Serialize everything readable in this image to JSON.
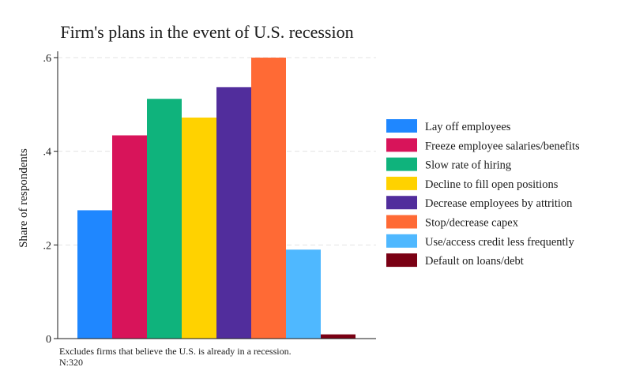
{
  "chart_data": {
    "type": "bar",
    "title": "Firm's plans in the event of U.S. recession",
    "xlabel": "",
    "ylabel": "Share of respondents",
    "ylim": [
      0,
      0.6
    ],
    "yticks": [
      0,
      0.2,
      0.4,
      0.6
    ],
    "ytick_labels": [
      "0",
      ".2",
      ".4",
      ".6"
    ],
    "grid": true,
    "legend_position": "right",
    "series": [
      {
        "name": "Lay off employees",
        "value": 0.274,
        "color": "#1f87ff"
      },
      {
        "name": "Freeze employee salaries/benefits",
        "value": 0.434,
        "color": "#d8145a"
      },
      {
        "name": "Slow rate of hiring",
        "value": 0.512,
        "color": "#0fb37c"
      },
      {
        "name": "Decline to fill open positions",
        "value": 0.472,
        "color": "#ffd200"
      },
      {
        "name": "Decrease employees by attrition",
        "value": 0.537,
        "color": "#512d9c"
      },
      {
        "name": "Stop/decrease capex",
        "value": 0.6,
        "color": "#ff6a35"
      },
      {
        "name": "Use/access credit less frequently",
        "value": 0.19,
        "color": "#4fb8ff"
      },
      {
        "name": "Default on loans/debt",
        "value": 0.009,
        "color": "#7a0014"
      }
    ],
    "notes": [
      "Excludes firms that  believe the U.S. is already in a recession.",
      "N:320"
    ]
  }
}
